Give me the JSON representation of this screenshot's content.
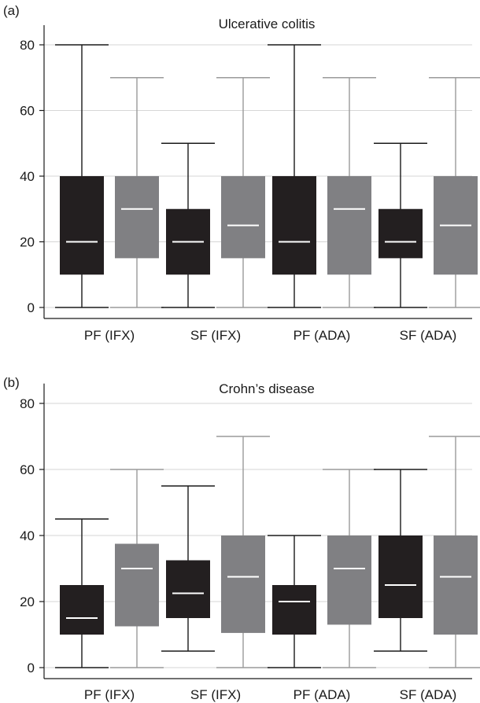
{
  "chart_data": [
    {
      "type": "boxplot",
      "panel_label": "(a)",
      "title": "Ulcerative colitis",
      "xlabel": "",
      "ylabel": "",
      "categories": [
        "PF (IFX)",
        "SF (IFX)",
        "PF (ADA)",
        "SF (ADA)"
      ],
      "yticks": [
        0,
        20,
        40,
        60,
        80
      ],
      "ylim": [
        -3,
        86
      ],
      "grid": true,
      "series_colors": [
        "#231f20",
        "#808083"
      ],
      "boxes": [
        [
          {
            "min": 0,
            "q1": 10,
            "median": 20,
            "q3": 40,
            "max": 80
          },
          {
            "min": 0,
            "q1": 15,
            "median": 30,
            "q3": 40,
            "max": 70
          }
        ],
        [
          {
            "min": 0,
            "q1": 10,
            "median": 20,
            "q3": 30,
            "max": 50
          },
          {
            "min": 0,
            "q1": 15,
            "median": 25,
            "q3": 40,
            "max": 70
          }
        ],
        [
          {
            "min": 0,
            "q1": 10,
            "median": 20,
            "q3": 40,
            "max": 80
          },
          {
            "min": 0,
            "q1": 10,
            "median": 30,
            "q3": 40,
            "max": 70
          }
        ],
        [
          {
            "min": 0,
            "q1": 15,
            "median": 20,
            "q3": 30,
            "max": 50
          },
          {
            "min": 0,
            "q1": 10,
            "median": 25,
            "q3": 40,
            "max": 70
          }
        ]
      ]
    },
    {
      "type": "boxplot",
      "panel_label": "(b)",
      "title": "Crohn’s disease",
      "xlabel": "",
      "ylabel": "",
      "categories": [
        "PF (IFX)",
        "SF (IFX)",
        "PF (ADA)",
        "SF (ADA)"
      ],
      "yticks": [
        0,
        20,
        40,
        60,
        80
      ],
      "ylim": [
        -3,
        86
      ],
      "grid": true,
      "series_colors": [
        "#231f20",
        "#808083"
      ],
      "boxes": [
        [
          {
            "min": 0,
            "q1": 10,
            "median": 15,
            "q3": 25,
            "max": 45
          },
          {
            "min": 0,
            "q1": 12.5,
            "median": 30,
            "q3": 37.5,
            "max": 60
          }
        ],
        [
          {
            "min": 5,
            "q1": 15,
            "median": 22.5,
            "q3": 32.5,
            "max": 55
          },
          {
            "min": 0,
            "q1": 10.5,
            "median": 27.5,
            "q3": 40,
            "max": 70
          }
        ],
        [
          {
            "min": 0,
            "q1": 10,
            "median": 20,
            "q3": 25,
            "max": 40
          },
          {
            "min": 0,
            "q1": 13,
            "median": 30,
            "q3": 40,
            "max": 60
          }
        ],
        [
          {
            "min": 5,
            "q1": 15,
            "median": 25,
            "q3": 40,
            "max": 60
          },
          {
            "min": 0,
            "q1": 10,
            "median": 27.5,
            "q3": 40,
            "max": 70
          }
        ]
      ]
    }
  ]
}
